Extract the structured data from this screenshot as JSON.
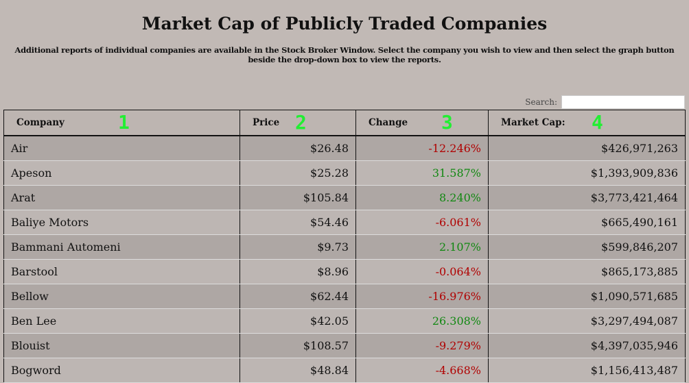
{
  "title": "Market Cap of Publicly Traded Companies",
  "subtitle": "Additional reports of individual companies are available in the Stock Broker Window. Select the company you wish to view and then select the graph button beside the drop-down box to view the reports.",
  "search": {
    "label": "Search:",
    "value": ""
  },
  "columns": [
    {
      "label": "Company",
      "marker": "1"
    },
    {
      "label": "Price",
      "marker": "2"
    },
    {
      "label": "Change",
      "marker": "3"
    },
    {
      "label": "Market Cap:",
      "marker": "4"
    }
  ],
  "colors": {
    "negative": "#b00000",
    "positive": "#118811",
    "marker": "#22ee33"
  },
  "rows": [
    {
      "company": "Air",
      "price": "$26.48",
      "change": "-12.246%",
      "cap": "$426,971,263"
    },
    {
      "company": "Apeson",
      "price": "$25.28",
      "change": "31.587%",
      "cap": "$1,393,909,836"
    },
    {
      "company": "Arat",
      "price": "$105.84",
      "change": "8.240%",
      "cap": "$3,773,421,464"
    },
    {
      "company": "Baliye Motors",
      "price": "$54.46",
      "change": "-6.061%",
      "cap": "$665,490,161"
    },
    {
      "company": "Bammani Automeni",
      "price": "$9.73",
      "change": "2.107%",
      "cap": "$599,846,207"
    },
    {
      "company": "Barstool",
      "price": "$8.96",
      "change": "-0.064%",
      "cap": "$865,173,885"
    },
    {
      "company": "Bellow",
      "price": "$62.44",
      "change": "-16.976%",
      "cap": "$1,090,571,685"
    },
    {
      "company": "Ben Lee",
      "price": "$42.05",
      "change": "26.308%",
      "cap": "$3,297,494,087"
    },
    {
      "company": "Blouist",
      "price": "$108.57",
      "change": "-9.279%",
      "cap": "$4,397,035,946"
    },
    {
      "company": "Bogword",
      "price": "$48.84",
      "change": "-4.668%",
      "cap": "$1,156,413,487"
    }
  ]
}
